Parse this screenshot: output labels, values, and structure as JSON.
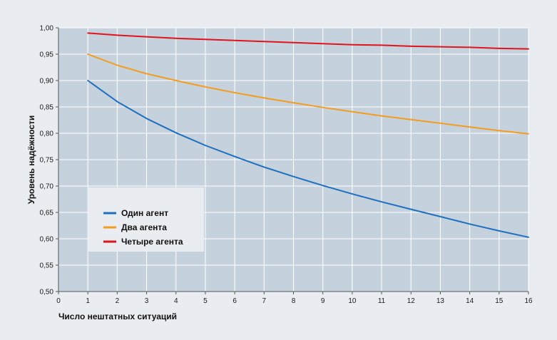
{
  "chart_data": {
    "type": "line",
    "title": "",
    "xlabel": "Число нештатных ситуаций",
    "ylabel": "Уровень надёжности",
    "xlim": [
      0,
      16
    ],
    "ylim": [
      0.5,
      1.0
    ],
    "x_ticks": [
      0,
      1,
      2,
      3,
      4,
      5,
      6,
      7,
      8,
      9,
      10,
      11,
      12,
      13,
      14,
      15,
      16
    ],
    "y_ticks": [
      0.5,
      0.55,
      0.6,
      0.65,
      0.7,
      0.75,
      0.8,
      0.85,
      0.9,
      0.95,
      1.0
    ],
    "x_tick_labels": [
      "0",
      "1",
      "2",
      "3",
      "4",
      "5",
      "6",
      "7",
      "8",
      "9",
      "10",
      "11",
      "12",
      "13",
      "14",
      "15",
      "16"
    ],
    "y_tick_labels": [
      "0,50",
      "0,55",
      "0,60",
      "0,65",
      "0,70",
      "0,75",
      "0,80",
      "0,85",
      "0,90",
      "0,95",
      "1,00"
    ],
    "grid": true,
    "legend_position": "bottom-left",
    "series": [
      {
        "name": "Один агент",
        "color": "#1f6fbf",
        "x": [
          1,
          2,
          3,
          4,
          5,
          6,
          7,
          8,
          9,
          10,
          11,
          12,
          13,
          14,
          15,
          16
        ],
        "values": [
          0.9,
          0.86,
          0.828,
          0.801,
          0.777,
          0.756,
          0.736,
          0.718,
          0.701,
          0.685,
          0.67,
          0.656,
          0.642,
          0.628,
          0.615,
          0.603
        ]
      },
      {
        "name": "Два агента",
        "color": "#f39c1f",
        "x": [
          1,
          2,
          3,
          4,
          5,
          6,
          7,
          8,
          9,
          10,
          11,
          12,
          13,
          14,
          15,
          16
        ],
        "values": [
          0.95,
          0.929,
          0.913,
          0.9,
          0.888,
          0.877,
          0.867,
          0.858,
          0.849,
          0.841,
          0.833,
          0.826,
          0.819,
          0.812,
          0.805,
          0.799
        ]
      },
      {
        "name": "Четыре агента",
        "color": "#e0141c",
        "x": [
          1,
          2,
          3,
          4,
          5,
          6,
          7,
          8,
          9,
          10,
          11,
          12,
          13,
          14,
          15,
          16
        ],
        "values": [
          0.99,
          0.986,
          0.983,
          0.98,
          0.978,
          0.976,
          0.974,
          0.972,
          0.97,
          0.968,
          0.967,
          0.965,
          0.964,
          0.963,
          0.961,
          0.96
        ]
      }
    ]
  }
}
